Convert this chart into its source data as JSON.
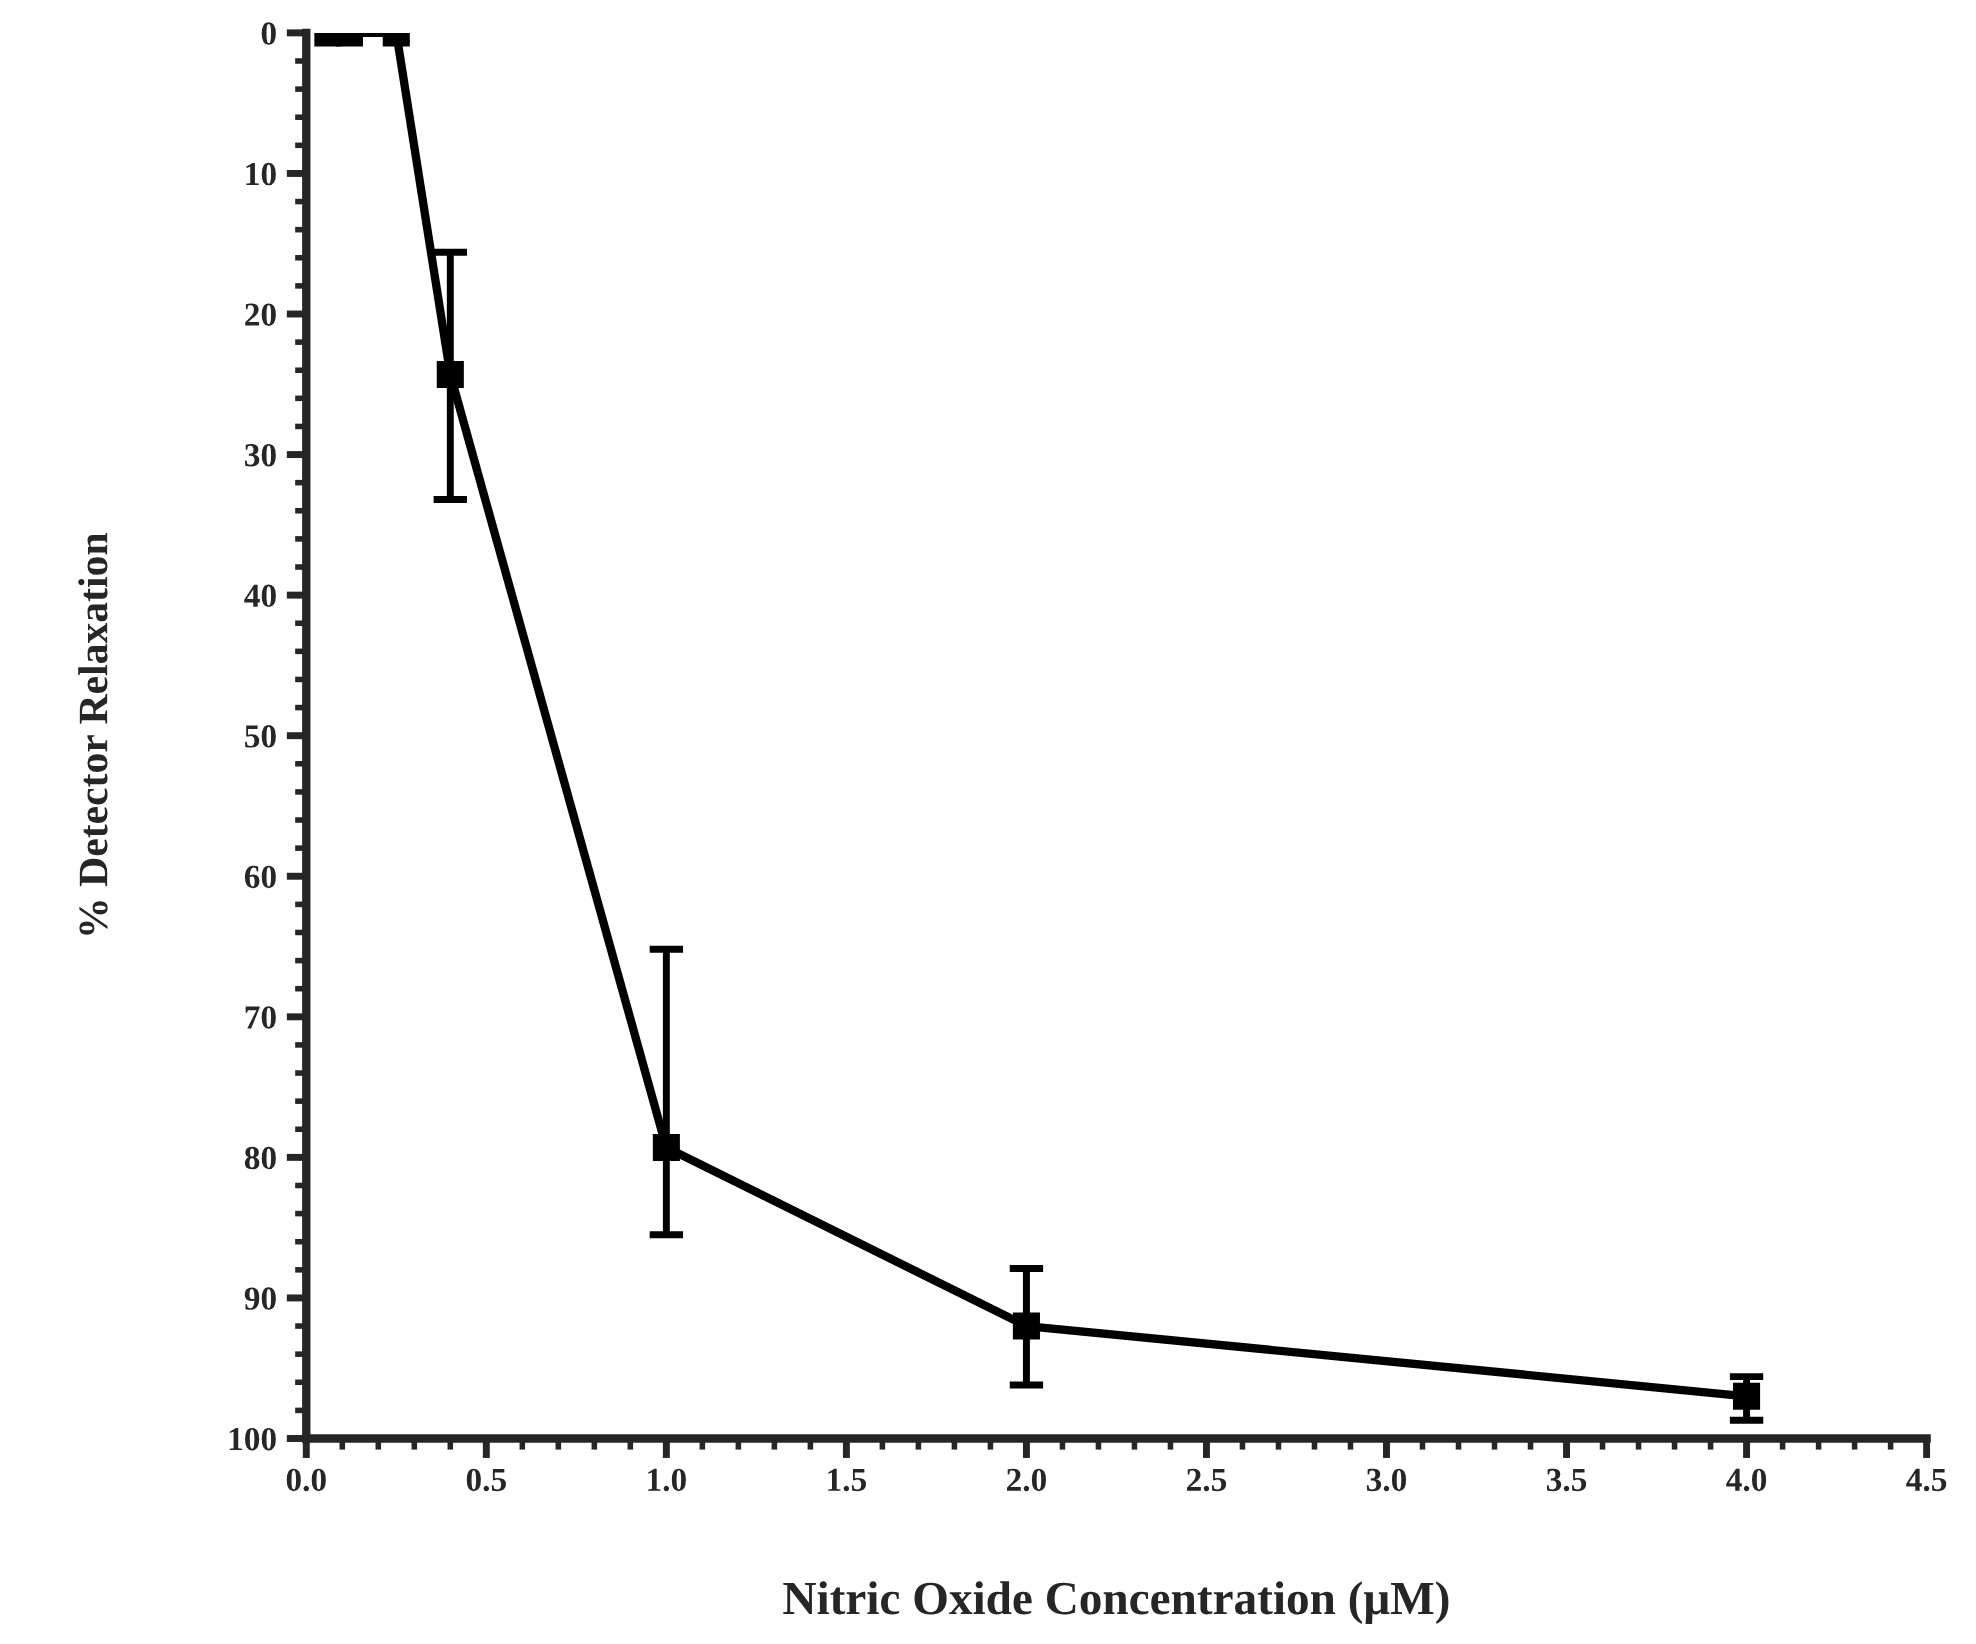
{
  "chart_data": {
    "type": "line",
    "xlabel": "Nitric Oxide Concentration (μM)",
    "ylabel": "% Detector Relaxation",
    "x": [
      0.06,
      0.12,
      0.25,
      0.4,
      1.0,
      2.0,
      4.0
    ],
    "series": [
      {
        "color": "#000000",
        "values": [
          0,
          0,
          0,
          24.3,
          79.3,
          92.0,
          97.0
        ],
        "errors": [
          null,
          null,
          null,
          [
            15.6,
            33.2
          ],
          [
            65.2,
            85.5
          ],
          [
            87.9,
            96.2
          ],
          [
            95.6,
            98.7
          ]
        ]
      }
    ],
    "xlim": [
      0,
      4.5
    ],
    "xticks": [
      {
        "value": 0,
        "label": "0.0"
      },
      {
        "value": 0.5,
        "label": "0.5"
      },
      {
        "value": 1,
        "label": "1.0"
      },
      {
        "value": 1.5,
        "label": "1.5"
      },
      {
        "value": 2,
        "label": "2.0"
      },
      {
        "value": 2.5,
        "label": "2.5"
      },
      {
        "value": 3,
        "label": "3.0"
      },
      {
        "value": 3.5,
        "label": "3.5"
      },
      {
        "value": 4,
        "label": "4.0"
      },
      {
        "value": 4.5,
        "label": "4.5"
      }
    ],
    "ylim": [
      100,
      0
    ],
    "yticks": [
      0,
      10,
      20,
      30,
      40,
      50,
      60,
      70,
      80,
      90,
      100
    ],
    "marker": "square",
    "line_style": "solid",
    "grid": false
  }
}
